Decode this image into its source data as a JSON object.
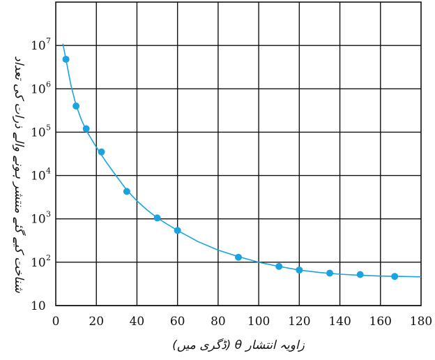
{
  "chart_data": {
    "type": "scatter",
    "xlabel": "زاویہ انتشار θ (ڈگری میں)",
    "ylabel": "شناخت کیے گئے منتشر ہونے والے ذرات کی تعداد",
    "x_ticks": [
      "0",
      "20",
      "40",
      "60",
      "80",
      "100",
      "120",
      "140",
      "160",
      "180"
    ],
    "y_ticks": [
      {
        "base": "10",
        "exp": "",
        "value": 10
      },
      {
        "base": "10",
        "exp": "2",
        "value": 100
      },
      {
        "base": "10",
        "exp": "3",
        "value": 1000
      },
      {
        "base": "10",
        "exp": "4",
        "value": 10000
      },
      {
        "base": "10",
        "exp": "5",
        "value": 100000
      },
      {
        "base": "10",
        "exp": "6",
        "value": 1000000
      },
      {
        "base": "10",
        "exp": "7",
        "value": 10000000
      }
    ],
    "xlim": [
      0,
      180
    ],
    "ylim": [
      10,
      100000000
    ],
    "y_scale": "log",
    "grid": true,
    "colors": {
      "series": "#1aa3df",
      "grid": "#111111"
    },
    "series": [
      {
        "type": "scatter",
        "points": [
          {
            "x": 5,
            "y": 4800000
          },
          {
            "x": 10,
            "y": 400000
          },
          {
            "x": 15,
            "y": 120000
          },
          {
            "x": 22.5,
            "y": 35000
          },
          {
            "x": 35,
            "y": 4300
          },
          {
            "x": 50,
            "y": 1050
          },
          {
            "x": 60,
            "y": 540
          },
          {
            "x": 90,
            "y": 130
          },
          {
            "x": 110,
            "y": 80
          },
          {
            "x": 120,
            "y": 66
          },
          {
            "x": 135,
            "y": 56
          },
          {
            "x": 150,
            "y": 52
          },
          {
            "x": 167,
            "y": 47
          }
        ]
      },
      {
        "type": "line",
        "points": [
          {
            "x": 3.5,
            "y": 11000000
          },
          {
            "x": 5,
            "y": 4800000
          },
          {
            "x": 7.5,
            "y": 1200000
          },
          {
            "x": 10,
            "y": 420000
          },
          {
            "x": 12.5,
            "y": 200000
          },
          {
            "x": 15,
            "y": 110000
          },
          {
            "x": 20,
            "y": 45000
          },
          {
            "x": 25,
            "y": 20000
          },
          {
            "x": 30,
            "y": 9500
          },
          {
            "x": 35,
            "y": 4600
          },
          {
            "x": 40,
            "y": 2600
          },
          {
            "x": 45,
            "y": 1600
          },
          {
            "x": 50,
            "y": 1050
          },
          {
            "x": 55,
            "y": 750
          },
          {
            "x": 60,
            "y": 540
          },
          {
            "x": 70,
            "y": 300
          },
          {
            "x": 80,
            "y": 190
          },
          {
            "x": 90,
            "y": 135
          },
          {
            "x": 100,
            "y": 100
          },
          {
            "x": 110,
            "y": 80
          },
          {
            "x": 120,
            "y": 66
          },
          {
            "x": 130,
            "y": 58
          },
          {
            "x": 140,
            "y": 53
          },
          {
            "x": 150,
            "y": 50
          },
          {
            "x": 160,
            "y": 48
          },
          {
            "x": 170,
            "y": 47
          },
          {
            "x": 180,
            "y": 46
          }
        ]
      }
    ]
  }
}
